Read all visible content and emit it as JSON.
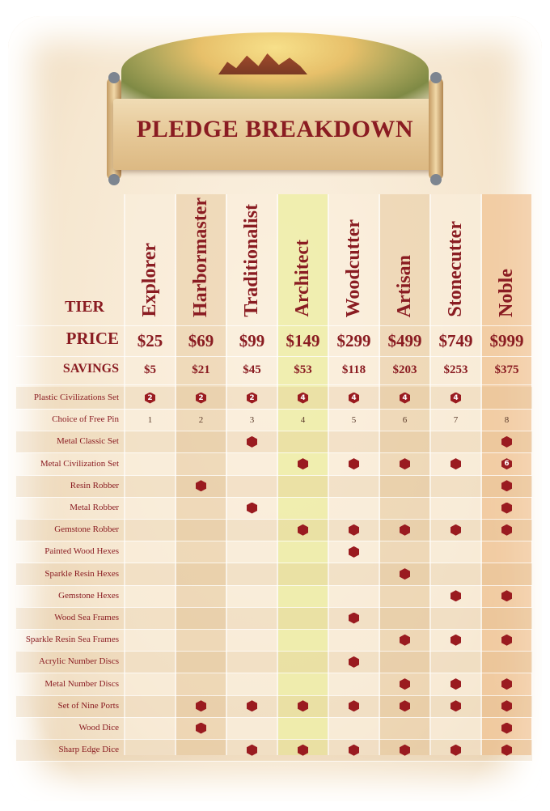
{
  "title": "PLEDGE BREAKDOWN",
  "colors": {
    "text": "#8a1c22",
    "dot": "#9a1b20"
  },
  "labels": {
    "tier": "TIER",
    "price": "PRICE",
    "savings": "SAVINGS"
  },
  "tiers": [
    {
      "name": "Explorer",
      "price": "$25",
      "savings": "$5"
    },
    {
      "name": "Harbormaster",
      "price": "$69",
      "savings": "$21"
    },
    {
      "name": "Traditionalist",
      "price": "$99",
      "savings": "$45"
    },
    {
      "name": "Architect",
      "price": "$149",
      "savings": "$53"
    },
    {
      "name": "Woodcutter",
      "price": "$299",
      "savings": "$118"
    },
    {
      "name": "Artisan",
      "price": "$499",
      "savings": "$203"
    },
    {
      "name": "Stonecutter",
      "price": "$749",
      "savings": "$253"
    },
    {
      "name": "Noble",
      "price": "$999",
      "savings": "$375"
    }
  ],
  "legend": {
    "x": "hex-dot-icon = included",
    "number-in-hex": "quantity"
  },
  "items": [
    {
      "label": "Plastic Civilizations Set",
      "cells": [
        "#2",
        "#2",
        "#2",
        "#4",
        "#4",
        "#4",
        "#4",
        ""
      ]
    },
    {
      "label": "Choice of Free Pin",
      "cells": [
        "1",
        "2",
        "3",
        "4",
        "5",
        "6",
        "7",
        "8"
      ]
    },
    {
      "label": "Metal Classic Set",
      "cells": [
        "",
        "",
        "x",
        "",
        "",
        "",
        "",
        "x"
      ]
    },
    {
      "label": "Metal Civilization Set",
      "cells": [
        "",
        "",
        "",
        "x",
        "x",
        "x",
        "x",
        "#6"
      ]
    },
    {
      "label": "Resin Robber",
      "cells": [
        "",
        "x",
        "",
        "",
        "",
        "",
        "",
        "x"
      ]
    },
    {
      "label": "Metal Robber",
      "cells": [
        "",
        "",
        "x",
        "",
        "",
        "",
        "",
        "x"
      ]
    },
    {
      "label": "Gemstone Robber",
      "cells": [
        "",
        "",
        "",
        "x",
        "x",
        "x",
        "x",
        "x"
      ]
    },
    {
      "label": "Painted Wood Hexes",
      "cells": [
        "",
        "",
        "",
        "",
        "x",
        "",
        "",
        ""
      ]
    },
    {
      "label": "Sparkle Resin Hexes",
      "cells": [
        "",
        "",
        "",
        "",
        "",
        "x",
        "",
        ""
      ]
    },
    {
      "label": "Gemstone Hexes",
      "cells": [
        "",
        "",
        "",
        "",
        "",
        "",
        "x",
        "x"
      ]
    },
    {
      "label": "Wood Sea Frames",
      "cells": [
        "",
        "",
        "",
        "",
        "x",
        "",
        "",
        ""
      ]
    },
    {
      "label": "Sparkle Resin Sea Frames",
      "cells": [
        "",
        "",
        "",
        "",
        "",
        "x",
        "x",
        "x"
      ]
    },
    {
      "label": "Acrylic Number Discs",
      "cells": [
        "",
        "",
        "",
        "",
        "x",
        "",
        "",
        ""
      ]
    },
    {
      "label": "Metal Number Discs",
      "cells": [
        "",
        "",
        "",
        "",
        "",
        "x",
        "x",
        "x"
      ]
    },
    {
      "label": "Set of Nine Ports",
      "cells": [
        "",
        "x",
        "x",
        "x",
        "x",
        "x",
        "x",
        "x"
      ]
    },
    {
      "label": "Wood Dice",
      "cells": [
        "",
        "x",
        "",
        "",
        "",
        "",
        "",
        "x"
      ]
    },
    {
      "label": "Sharp Edge Dice",
      "cells": [
        "",
        "",
        "x",
        "x",
        "x",
        "x",
        "x",
        "x"
      ]
    }
  ]
}
